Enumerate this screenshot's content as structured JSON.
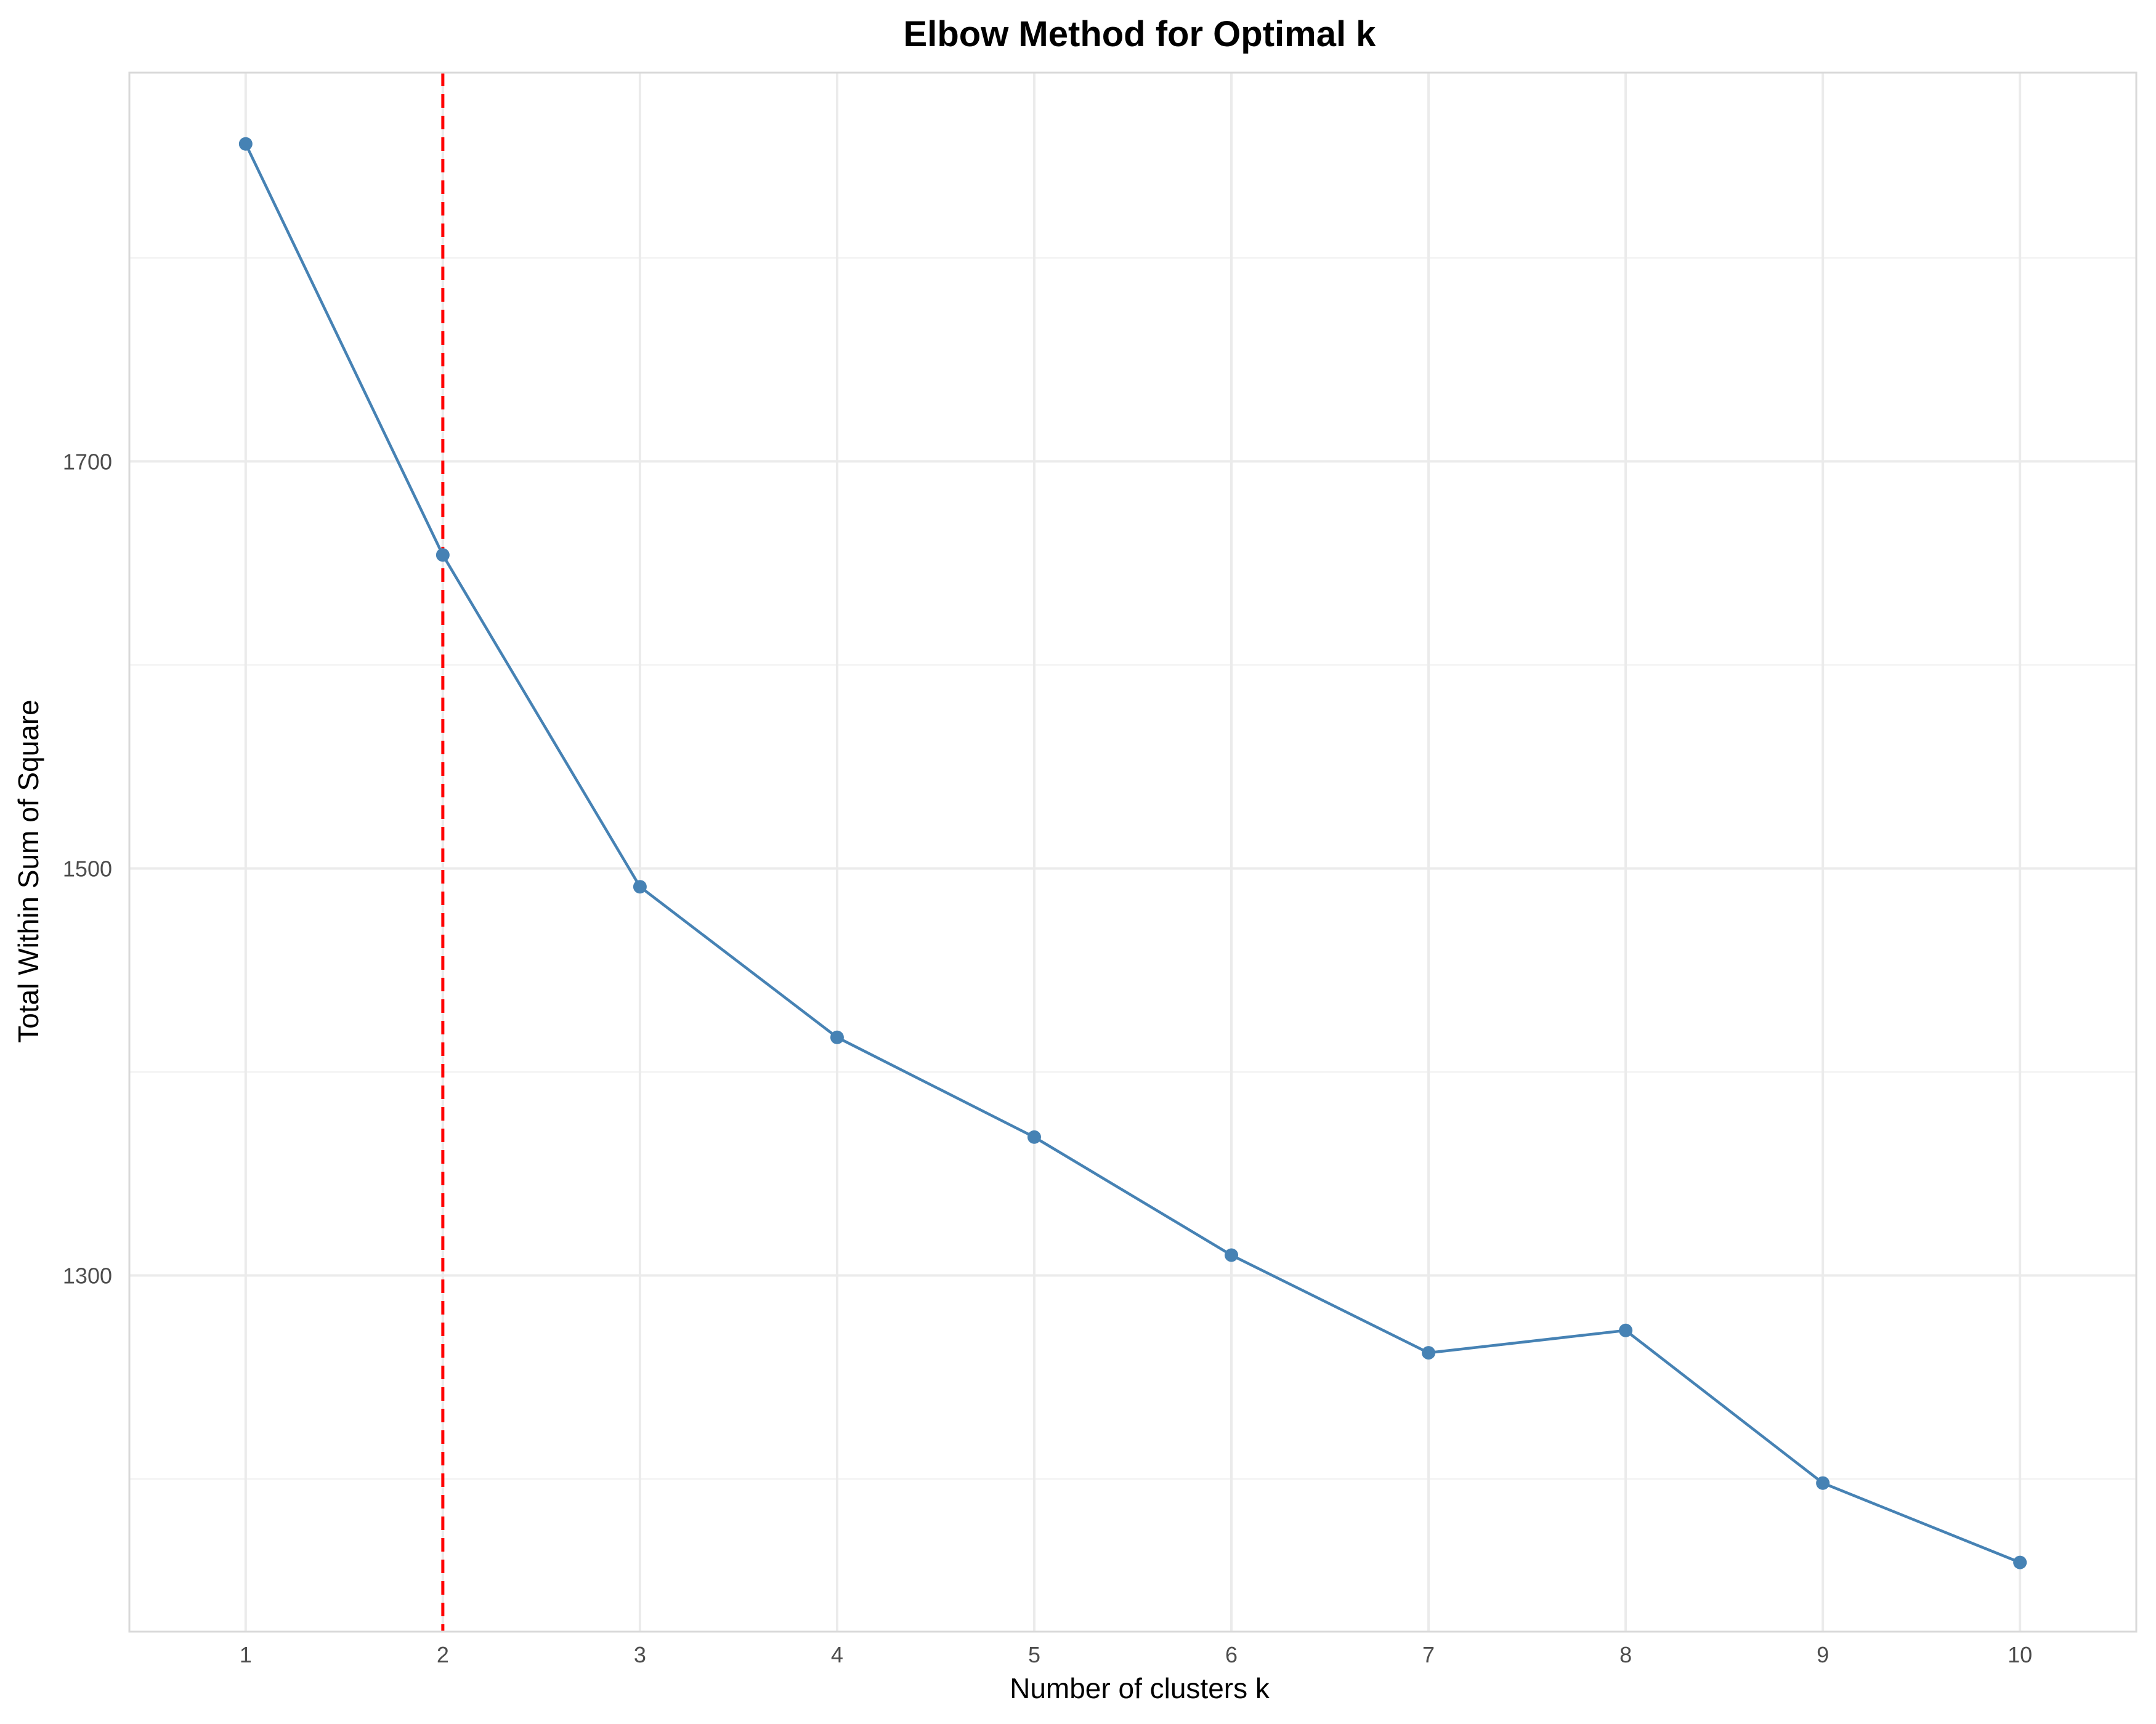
{
  "chart_data": {
    "type": "line",
    "title": "Elbow Method for Optimal k",
    "xlabel": "Number of clusters k",
    "ylabel": "Total Within Sum of Square",
    "x": [
      1,
      2,
      3,
      4,
      5,
      6,
      7,
      8,
      9,
      10
    ],
    "series": [
      {
        "values": [
          1856,
          1654,
          1491,
          1417,
          1368,
          1310,
          1262,
          1273,
          1198,
          1159
        ],
        "color": "#4682b4"
      }
    ],
    "x_ticks": [
      "1",
      "2",
      "3",
      "4",
      "5",
      "6",
      "7",
      "8",
      "9",
      "10"
    ],
    "y_ticks": [
      "1300",
      "1500",
      "1700"
    ],
    "y_tick_values": [
      1300,
      1500,
      1700
    ],
    "y_minor_tick_values": [
      1200,
      1400,
      1600,
      1800
    ],
    "xlim": [
      0.41,
      10.59
    ],
    "ylim": [
      1125,
      1891
    ],
    "reference_line": {
      "x": 2,
      "color": "#ff0000",
      "style": "dashed"
    },
    "grid": true,
    "legend": "none"
  }
}
